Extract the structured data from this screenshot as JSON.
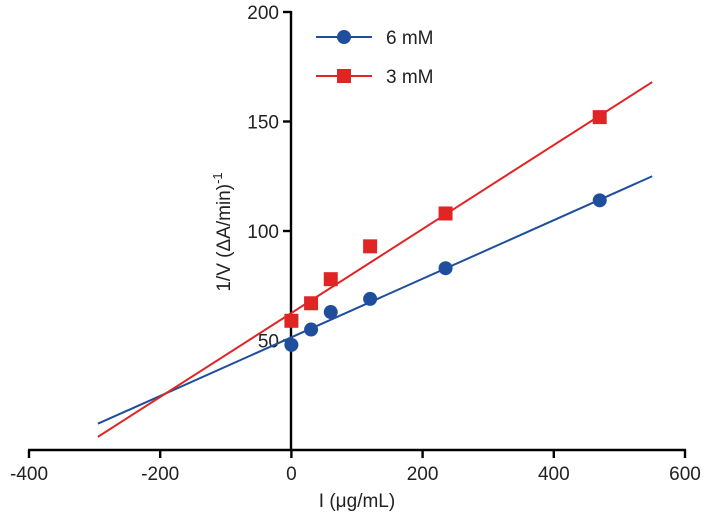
{
  "chart_data": {
    "type": "scatter",
    "title": "",
    "xlabel": "I (μg/mL)",
    "ylabel_main": "1/V (ΔA/min)",
    "ylabel_sup": "-1",
    "xlim": [
      -400,
      600
    ],
    "ylim": [
      0,
      200
    ],
    "xticks": [
      -400,
      -200,
      0,
      200,
      400,
      600
    ],
    "yticks": [
      50,
      100,
      150,
      200
    ],
    "xtick_labels": [
      "-400",
      "-200",
      "0",
      "200",
      "400",
      "600"
    ],
    "ytick_labels": [
      "50",
      "100",
      "150",
      "200"
    ],
    "grid": false,
    "legend_position": "top-left",
    "series": [
      {
        "name": "6 mM",
        "color": "#1f4e9c",
        "marker": "circle",
        "x": [
          0,
          30,
          60,
          120,
          235,
          470
        ],
        "y": [
          48,
          55,
          63,
          69,
          83,
          114
        ],
        "fit_line": {
          "x": [
            -295,
            550
          ],
          "y": [
            12,
            125
          ]
        }
      },
      {
        "name": "3 mM",
        "color": "#e02525",
        "marker": "square",
        "x": [
          0,
          30,
          60,
          120,
          235,
          470
        ],
        "y": [
          59,
          67,
          78,
          93,
          108,
          152
        ],
        "fit_line": {
          "x": [
            -295,
            550
          ],
          "y": [
            6,
            168
          ]
        }
      }
    ]
  }
}
